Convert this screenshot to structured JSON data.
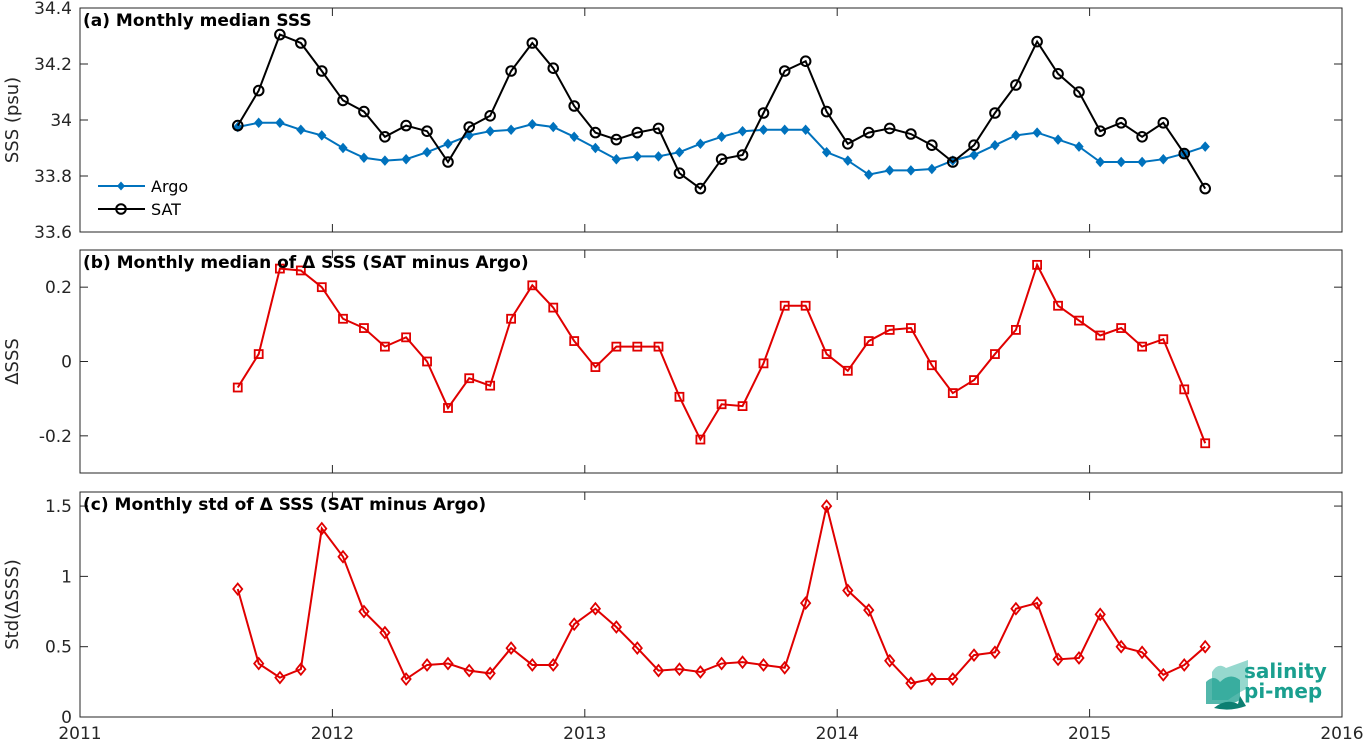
{
  "chart_data": [
    {
      "type": "line",
      "title": "(a) Monthly median SSS",
      "ylabel": "SSS (psu)",
      "ylim": [
        33.6,
        34.4
      ],
      "yticks": [
        33.6,
        33.8,
        34,
        34.2,
        34.4
      ],
      "ytick_labels": [
        "33.6",
        "33.8",
        "34",
        "34.2",
        "34.4"
      ],
      "legend_position": "left-middle",
      "grid": true,
      "series": [
        {
          "name": "Argo",
          "color": "#0072bd",
          "marker": "filled-diamond",
          "x": [
            2011.625,
            2011.708,
            2011.792,
            2011.875,
            2011.958,
            2012.042,
            2012.125,
            2012.208,
            2012.292,
            2012.375,
            2012.458,
            2012.542,
            2012.625,
            2012.708,
            2012.792,
            2012.875,
            2012.958,
            2013.042,
            2013.125,
            2013.208,
            2013.292,
            2013.375,
            2013.458,
            2013.542,
            2013.625,
            2013.708,
            2013.792,
            2013.875,
            2013.958,
            2014.042,
            2014.125,
            2014.208,
            2014.292,
            2014.375,
            2014.458,
            2014.542,
            2014.625,
            2014.708,
            2014.792,
            2014.875,
            2014.958,
            2015.042,
            2015.125,
            2015.208,
            2015.292,
            2015.375,
            2015.458
          ],
          "values": [
            33.975,
            33.99,
            33.99,
            33.965,
            33.945,
            33.9,
            33.865,
            33.855,
            33.86,
            33.885,
            33.915,
            33.945,
            33.96,
            33.965,
            33.985,
            33.975,
            33.94,
            33.9,
            33.86,
            33.87,
            33.87,
            33.885,
            33.915,
            33.94,
            33.96,
            33.965,
            33.965,
            33.965,
            33.885,
            33.855,
            33.805,
            33.82,
            33.82,
            33.825,
            33.855,
            33.875,
            33.91,
            33.945,
            33.955,
            33.93,
            33.905,
            33.85,
            33.85,
            33.85,
            33.86,
            33.88,
            33.905
          ]
        },
        {
          "name": "SAT",
          "color": "#000000",
          "marker": "open-circle",
          "x": [
            2011.625,
            2011.708,
            2011.792,
            2011.875,
            2011.958,
            2012.042,
            2012.125,
            2012.208,
            2012.292,
            2012.375,
            2012.458,
            2012.542,
            2012.625,
            2012.708,
            2012.792,
            2012.875,
            2012.958,
            2013.042,
            2013.125,
            2013.208,
            2013.292,
            2013.375,
            2013.458,
            2013.542,
            2013.625,
            2013.708,
            2013.792,
            2013.875,
            2013.958,
            2014.042,
            2014.125,
            2014.208,
            2014.292,
            2014.375,
            2014.458,
            2014.542,
            2014.625,
            2014.708,
            2014.792,
            2014.875,
            2014.958,
            2015.042,
            2015.125,
            2015.208,
            2015.292,
            2015.375,
            2015.458
          ],
          "values": [
            33.98,
            34.105,
            34.305,
            34.275,
            34.175,
            34.07,
            34.03,
            33.94,
            33.98,
            33.96,
            33.85,
            33.975,
            34.015,
            34.175,
            34.275,
            34.185,
            34.05,
            33.955,
            33.93,
            33.955,
            33.97,
            33.81,
            33.755,
            33.86,
            33.875,
            34.025,
            34.175,
            34.21,
            34.03,
            33.915,
            33.955,
            33.97,
            33.95,
            33.91,
            33.85,
            33.91,
            34.025,
            34.125,
            34.28,
            34.165,
            34.1,
            33.96,
            33.99,
            33.94,
            33.99,
            33.88,
            33.755
          ]
        }
      ]
    },
    {
      "type": "line",
      "title": "(b) Monthly median of Δ SSS (SAT minus Argo)",
      "ylabel": "ΔSSS",
      "ylim": [
        -0.3,
        0.3
      ],
      "yticks": [
        -0.2,
        0,
        0.2
      ],
      "ytick_labels": [
        "-0.2",
        "0",
        "0.2"
      ],
      "grid": true,
      "reference_line": 0,
      "series": [
        {
          "color": "#e00000",
          "marker": "open-square",
          "x": [
            2011.625,
            2011.708,
            2011.792,
            2011.875,
            2011.958,
            2012.042,
            2012.125,
            2012.208,
            2012.292,
            2012.375,
            2012.458,
            2012.542,
            2012.625,
            2012.708,
            2012.792,
            2012.875,
            2012.958,
            2013.042,
            2013.125,
            2013.208,
            2013.292,
            2013.375,
            2013.458,
            2013.542,
            2013.625,
            2013.708,
            2013.792,
            2013.875,
            2013.958,
            2014.042,
            2014.125,
            2014.208,
            2014.292,
            2014.375,
            2014.458,
            2014.542,
            2014.625,
            2014.708,
            2014.792,
            2014.875,
            2014.958,
            2015.042,
            2015.125,
            2015.208,
            2015.292,
            2015.375,
            2015.458
          ],
          "values": [
            -0.07,
            0.02,
            0.25,
            0.245,
            0.2,
            0.115,
            0.09,
            0.04,
            0.065,
            0.0,
            -0.125,
            -0.045,
            -0.065,
            0.115,
            0.205,
            0.145,
            0.055,
            -0.015,
            0.04,
            0.04,
            0.04,
            -0.095,
            -0.21,
            -0.115,
            -0.12,
            -0.005,
            0.15,
            0.15,
            0.02,
            -0.025,
            0.055,
            0.085,
            0.09,
            -0.01,
            -0.085,
            -0.05,
            0.02,
            0.085,
            0.26,
            0.15,
            0.11,
            0.07,
            0.09,
            0.04,
            0.06,
            -0.075,
            -0.22
          ]
        }
      ]
    },
    {
      "type": "line",
      "title": "(c) Monthly std of Δ SSS (SAT minus Argo)",
      "ylabel": "Std(ΔSSS)",
      "xlabel": "",
      "ylim": [
        0,
        1.6
      ],
      "yticks": [
        0,
        0.5,
        1,
        1.5
      ],
      "ytick_labels": [
        "0",
        "0.5",
        "1",
        "1.5"
      ],
      "xlim": [
        2011,
        2016
      ],
      "xticks": [
        2011,
        2012,
        2013,
        2014,
        2015,
        2016
      ],
      "xtick_labels": [
        "2011",
        "2012",
        "2013",
        "2014",
        "2015",
        "2016"
      ],
      "grid": true,
      "series": [
        {
          "color": "#e00000",
          "marker": "open-diamond",
          "x": [
            2011.625,
            2011.708,
            2011.792,
            2011.875,
            2011.958,
            2012.042,
            2012.125,
            2012.208,
            2012.292,
            2012.375,
            2012.458,
            2012.542,
            2012.625,
            2012.708,
            2012.792,
            2012.875,
            2012.958,
            2013.042,
            2013.125,
            2013.208,
            2013.292,
            2013.375,
            2013.458,
            2013.542,
            2013.625,
            2013.708,
            2013.792,
            2013.875,
            2013.958,
            2014.042,
            2014.125,
            2014.208,
            2014.292,
            2014.375,
            2014.458,
            2014.542,
            2014.625,
            2014.708,
            2014.792,
            2014.875,
            2014.958,
            2015.042,
            2015.125,
            2015.208,
            2015.292,
            2015.375,
            2015.458
          ],
          "values": [
            0.91,
            0.38,
            0.28,
            0.34,
            1.34,
            1.14,
            0.75,
            0.6,
            0.27,
            0.37,
            0.38,
            0.33,
            0.31,
            0.49,
            0.37,
            0.37,
            0.66,
            0.77,
            0.64,
            0.49,
            0.33,
            0.34,
            0.32,
            0.38,
            0.39,
            0.37,
            0.35,
            0.81,
            1.5,
            0.9,
            0.76,
            0.4,
            0.24,
            0.27,
            0.27,
            0.44,
            0.46,
            0.77,
            0.81,
            0.41,
            0.42,
            0.73,
            0.5,
            0.46,
            0.3,
            0.37,
            0.5
          ]
        }
      ]
    }
  ],
  "logo": {
    "line1": "salinity",
    "line2": "pi-mep",
    "color": "#1a9f8f"
  }
}
